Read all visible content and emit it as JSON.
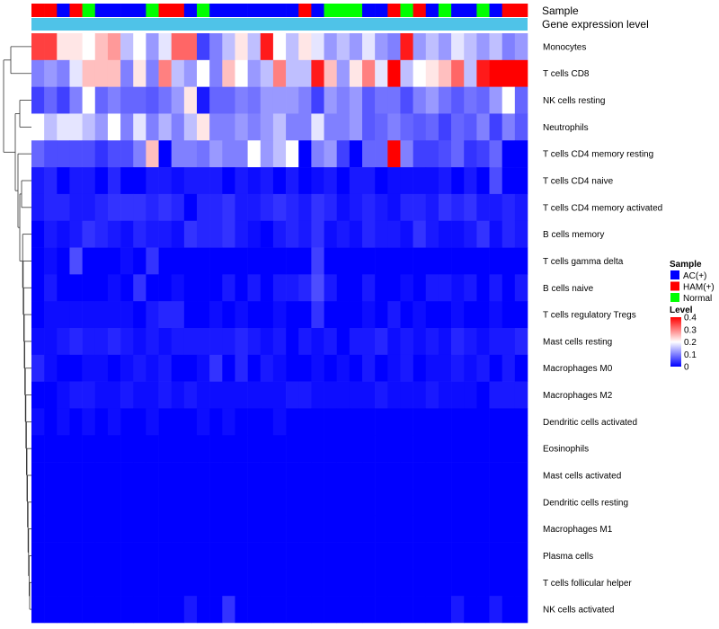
{
  "chart_data": {
    "type": "heatmap",
    "annotation_tracks": [
      "Sample",
      "Gene expression level"
    ],
    "track2_color": "#4FC3E8",
    "rows": [
      "Monocytes",
      "T cells CD8",
      "NK cells resting",
      "Neutrophils",
      "T cells CD4 memory resting",
      "T cells CD4 naive",
      "T cells CD4 memory activated",
      "B cells memory",
      "T cells gamma delta",
      "B cells naive",
      "T cells regulatory  Tregs",
      "Mast cells resting",
      "Macrophages M0",
      "Macrophages M2",
      "Dendritic cells activated",
      "Eosinophils",
      "Mast cells activated",
      "Dendritic cells resting",
      "Macrophages M1",
      "Plasma cells",
      "T cells follicular helper",
      "NK cells activated"
    ],
    "samples": [
      "HAM(+)",
      "HAM(+)",
      "AC(+)",
      "HAM(+)",
      "Normal",
      "AC(+)",
      "AC(+)",
      "AC(+)",
      "AC(+)",
      "Normal",
      "HAM(+)",
      "HAM(+)",
      "AC(+)",
      "Normal",
      "AC(+)",
      "AC(+)",
      "AC(+)",
      "AC(+)",
      "AC(+)",
      "AC(+)",
      "AC(+)",
      "HAM(+)",
      "AC(+)",
      "Normal",
      "Normal",
      "Normal",
      "AC(+)",
      "AC(+)",
      "HAM(+)",
      "Normal",
      "HAM(+)",
      "AC(+)",
      "Normal",
      "AC(+)",
      "AC(+)",
      "Normal",
      "AC(+)",
      "HAM(+)",
      "HAM(+)"
    ],
    "values": [
      [
        0.35,
        0.35,
        0.22,
        0.22,
        0.2,
        0.25,
        0.28,
        0.15,
        0.2,
        0.12,
        0.18,
        0.32,
        0.32,
        0.05,
        0.1,
        0.15,
        0.22,
        0.15,
        0.38,
        0.2,
        0.15,
        0.22,
        0.18,
        0.12,
        0.15,
        0.12,
        0.18,
        0.12,
        0.1,
        0.38,
        0.12,
        0.15,
        0.12,
        0.18,
        0.15,
        0.12,
        0.15,
        0.1,
        0.12
      ],
      [
        0.1,
        0.12,
        0.1,
        0.18,
        0.25,
        0.25,
        0.25,
        0.1,
        0.22,
        0.1,
        0.3,
        0.15,
        0.12,
        0.2,
        0.1,
        0.25,
        0.2,
        0.12,
        0.15,
        0.3,
        0.15,
        0.15,
        0.38,
        0.25,
        0.12,
        0.22,
        0.3,
        0.18,
        0.4,
        0.15,
        0.2,
        0.22,
        0.25,
        0.32,
        0.15,
        0.38,
        0.4,
        0.4,
        0.4
      ],
      [
        0.05,
        0.08,
        0.05,
        0.1,
        0.2,
        0.08,
        0.1,
        0.08,
        0.08,
        0.07,
        0.09,
        0.12,
        0.22,
        0.02,
        0.08,
        0.08,
        0.1,
        0.09,
        0.12,
        0.12,
        0.12,
        0.1,
        0.05,
        0.12,
        0.1,
        0.12,
        0.07,
        0.09,
        0.09,
        0.06,
        0.1,
        0.12,
        0.09,
        0.07,
        0.09,
        0.08,
        0.12,
        0.2,
        0.08
      ],
      [
        0.2,
        0.15,
        0.18,
        0.18,
        0.15,
        0.12,
        0.2,
        0.1,
        0.18,
        0.1,
        0.14,
        0.1,
        0.15,
        0.22,
        0.1,
        0.1,
        0.12,
        0.1,
        0.12,
        0.15,
        0.1,
        0.1,
        0.18,
        0.1,
        0.1,
        0.12,
        0.07,
        0.08,
        0.1,
        0.08,
        0.07,
        0.08,
        0.05,
        0.08,
        0.07,
        0.1,
        0.05,
        0.1,
        0.07
      ],
      [
        0.08,
        0.06,
        0.06,
        0.06,
        0.06,
        0.04,
        0.06,
        0.06,
        0.1,
        0.25,
        0.0,
        0.1,
        0.1,
        0.09,
        0.12,
        0.1,
        0.1,
        0.2,
        0.12,
        0.15,
        0.2,
        0.0,
        0.1,
        0.12,
        0.05,
        0.0,
        0.08,
        0.08,
        0.4,
        0.1,
        0.05,
        0.05,
        0.06,
        0.08,
        0.04,
        0.05,
        0.08,
        0.0,
        0.0
      ],
      [
        0.02,
        0.03,
        0.0,
        0.02,
        0.02,
        0.0,
        0.03,
        0.0,
        0.0,
        0.02,
        0.02,
        0.01,
        0.02,
        0.02,
        0.02,
        0.0,
        0.02,
        0.01,
        0.02,
        0.0,
        0.02,
        0.0,
        0.01,
        0.02,
        0.0,
        0.02,
        0.02,
        0.0,
        0.01,
        0.01,
        0.01,
        0.01,
        0.02,
        0.0,
        0.02,
        0.0,
        0.06,
        0.0,
        0.0
      ],
      [
        0.02,
        0.03,
        0.03,
        0.02,
        0.02,
        0.03,
        0.04,
        0.04,
        0.04,
        0.03,
        0.04,
        0.03,
        0.0,
        0.03,
        0.03,
        0.04,
        0.02,
        0.02,
        0.03,
        0.04,
        0.03,
        0.02,
        0.04,
        0.03,
        0.01,
        0.02,
        0.03,
        0.02,
        0.01,
        0.03,
        0.03,
        0.02,
        0.04,
        0.03,
        0.04,
        0.02,
        0.02,
        0.03,
        0.02
      ],
      [
        0.0,
        0.02,
        0.01,
        0.02,
        0.04,
        0.03,
        0.02,
        0.01,
        0.03,
        0.02,
        0.02,
        0.01,
        0.04,
        0.03,
        0.03,
        0.04,
        0.02,
        0.01,
        0.0,
        0.02,
        0.03,
        0.02,
        0.04,
        0.01,
        0.02,
        0.01,
        0.03,
        0.02,
        0.02,
        0.01,
        0.04,
        0.02,
        0.01,
        0.01,
        0.02,
        0.04,
        0.01,
        0.03,
        0.02
      ],
      [
        0.0,
        0.01,
        0.0,
        0.06,
        0.0,
        0.0,
        0.0,
        0.01,
        0.0,
        0.04,
        0.0,
        0.0,
        0.0,
        0.0,
        0.0,
        0.0,
        0.0,
        0.0,
        0.0,
        0.0,
        0.0,
        0.0,
        0.05,
        0.0,
        0.0,
        0.0,
        0.0,
        0.0,
        0.0,
        0.0,
        0.0,
        0.0,
        0.0,
        0.0,
        0.0,
        0.0,
        0.0,
        0.0,
        0.0
      ],
      [
        0.0,
        0.02,
        0.0,
        0.0,
        0.0,
        0.0,
        0.01,
        0.0,
        0.04,
        0.0,
        0.0,
        0.01,
        0.0,
        0.0,
        0.0,
        0.02,
        0.0,
        0.02,
        0.0,
        0.02,
        0.02,
        0.03,
        0.06,
        0.02,
        0.0,
        0.0,
        0.02,
        0.0,
        0.0,
        0.01,
        0.0,
        0.02,
        0.02,
        0.01,
        0.02,
        0.0,
        0.02,
        0.0,
        0.02
      ],
      [
        0.0,
        0.01,
        0.01,
        0.01,
        0.01,
        0.01,
        0.01,
        0.01,
        0.0,
        0.02,
        0.03,
        0.03,
        0.0,
        0.0,
        0.01,
        0.0,
        0.01,
        0.0,
        0.0,
        0.01,
        0.0,
        0.0,
        0.04,
        0.0,
        0.0,
        0.0,
        0.01,
        0.0,
        0.02,
        0.0,
        0.01,
        0.0,
        0.0,
        0.01,
        0.0,
        0.0,
        0.01,
        0.0,
        0.0
      ],
      [
        0.01,
        0.01,
        0.02,
        0.03,
        0.02,
        0.02,
        0.03,
        0.02,
        0.01,
        0.02,
        0.01,
        0.02,
        0.02,
        0.02,
        0.02,
        0.02,
        0.03,
        0.02,
        0.01,
        0.02,
        0.0,
        0.02,
        0.01,
        0.02,
        0.0,
        0.02,
        0.02,
        0.03,
        0.01,
        0.02,
        0.01,
        0.02,
        0.01,
        0.03,
        0.02,
        0.01,
        0.02,
        0.02,
        0.03
      ],
      [
        0.03,
        0.01,
        0.0,
        0.0,
        0.01,
        0.01,
        0.0,
        0.01,
        0.02,
        0.01,
        0.02,
        0.0,
        0.0,
        0.01,
        0.04,
        0.0,
        0.03,
        0.0,
        0.02,
        0.01,
        0.0,
        0.0,
        0.01,
        0.0,
        0.01,
        0.0,
        0.02,
        0.0,
        0.01,
        0.02,
        0.0,
        0.01,
        0.01,
        0.02,
        0.01,
        0.02,
        0.0,
        0.02,
        0.0
      ],
      [
        0.0,
        0.0,
        0.01,
        0.02,
        0.02,
        0.01,
        0.01,
        0.02,
        0.01,
        0.01,
        0.02,
        0.01,
        0.02,
        0.01,
        0.01,
        0.01,
        0.01,
        0.01,
        0.01,
        0.01,
        0.02,
        0.02,
        0.01,
        0.01,
        0.01,
        0.01,
        0.01,
        0.02,
        0.01,
        0.01,
        0.01,
        0.02,
        0.01,
        0.01,
        0.01,
        0.0,
        0.02,
        0.02,
        0.02
      ],
      [
        0.01,
        0.0,
        0.01,
        0.0,
        0.01,
        0.0,
        0.01,
        0.0,
        0.0,
        0.01,
        0.0,
        0.0,
        0.0,
        0.01,
        0.0,
        0.01,
        0.0,
        0.0,
        0.0,
        0.01,
        0.0,
        0.0,
        0.0,
        0.0,
        0.0,
        0.0,
        0.0,
        0.0,
        0.0,
        0.0,
        0.0,
        0.0,
        0.0,
        0.0,
        0.0,
        0.0,
        0.0,
        0.0,
        0.0
      ],
      [
        0,
        0,
        0,
        0,
        0,
        0,
        0,
        0,
        0,
        0,
        0,
        0,
        0,
        0,
        0,
        0,
        0,
        0,
        0,
        0,
        0,
        0,
        0,
        0,
        0,
        0,
        0,
        0,
        0,
        0,
        0,
        0,
        0,
        0,
        0,
        0,
        0,
        0,
        0
      ],
      [
        0,
        0,
        0,
        0,
        0,
        0,
        0,
        0,
        0,
        0,
        0,
        0,
        0,
        0,
        0,
        0,
        0,
        0,
        0,
        0,
        0,
        0,
        0,
        0,
        0,
        0,
        0,
        0,
        0,
        0,
        0,
        0,
        0,
        0,
        0,
        0,
        0,
        0,
        0
      ],
      [
        0,
        0,
        0,
        0,
        0,
        0,
        0,
        0,
        0,
        0,
        0,
        0,
        0,
        0,
        0,
        0,
        0,
        0,
        0,
        0,
        0,
        0,
        0,
        0,
        0,
        0,
        0,
        0,
        0,
        0,
        0,
        0,
        0,
        0,
        0,
        0,
        0,
        0,
        0
      ],
      [
        0,
        0,
        0,
        0,
        0,
        0,
        0,
        0,
        0,
        0,
        0,
        0,
        0,
        0,
        0,
        0,
        0,
        0,
        0,
        0,
        0,
        0,
        0,
        0,
        0,
        0,
        0,
        0,
        0,
        0,
        0,
        0,
        0,
        0,
        0,
        0,
        0,
        0,
        0
      ],
      [
        0,
        0,
        0,
        0,
        0,
        0,
        0,
        0,
        0,
        0,
        0,
        0,
        0,
        0,
        0,
        0,
        0,
        0,
        0,
        0,
        0,
        0,
        0,
        0,
        0,
        0,
        0,
        0,
        0,
        0,
        0,
        0,
        0,
        0,
        0,
        0,
        0,
        0,
        0
      ],
      [
        0,
        0,
        0,
        0,
        0,
        0,
        0,
        0,
        0,
        0,
        0,
        0,
        0,
        0,
        0,
        0,
        0,
        0,
        0,
        0,
        0,
        0,
        0,
        0,
        0,
        0,
        0,
        0,
        0,
        0,
        0,
        0,
        0,
        0,
        0,
        0,
        0,
        0,
        0
      ],
      [
        0,
        0,
        0,
        0,
        0,
        0,
        0,
        0,
        0,
        0,
        0,
        0,
        0.02,
        0,
        0,
        0.04,
        0,
        0,
        0,
        0,
        0,
        0,
        0,
        0,
        0,
        0,
        0,
        0,
        0,
        0,
        0,
        0,
        0,
        0.02,
        0,
        0,
        0.02,
        0,
        0
      ]
    ],
    "legend": {
      "sample_title": "Sample",
      "sample_entries": [
        {
          "label": "AC(+)",
          "color": "#0000FF"
        },
        {
          "label": "HAM(+)",
          "color": "#FF0000"
        },
        {
          "label": "Normal",
          "color": "#00FF00"
        }
      ],
      "level_title": "Level",
      "level_ticks": [
        "0.4",
        "0.3",
        "0.2",
        "0.1",
        "0"
      ],
      "level_range": [
        0,
        0.4
      ],
      "color_scale": [
        "#0000FF",
        "#FFFFFF",
        "#FF0000"
      ]
    }
  }
}
